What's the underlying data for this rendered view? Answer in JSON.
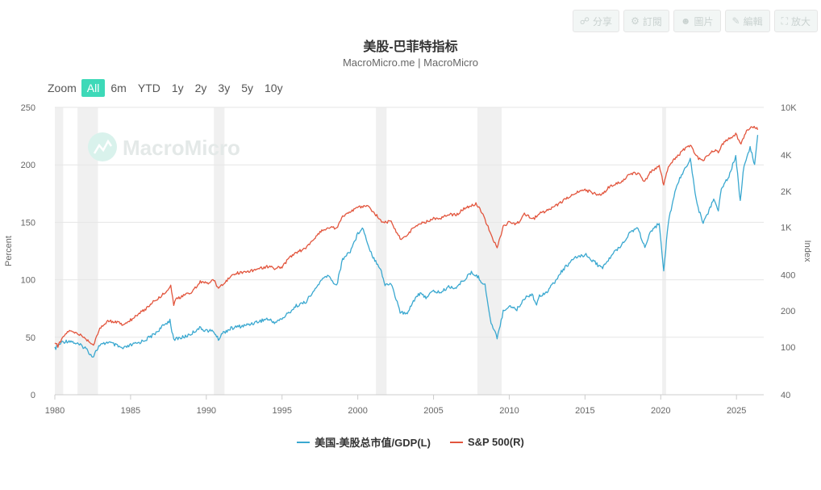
{
  "toolbar": {
    "buttons": [
      {
        "label": "分享",
        "icon": "share-icon"
      },
      {
        "label": "訂閱",
        "icon": "gear-icon"
      },
      {
        "label": "圖片",
        "icon": "user-icon"
      },
      {
        "label": "編輯",
        "icon": "pencil-icon"
      },
      {
        "label": "放大",
        "icon": "expand-icon"
      }
    ]
  },
  "zoom": {
    "label": "Zoom",
    "options": [
      "All",
      "6m",
      "YTD",
      "1y",
      "2y",
      "3y",
      "5y",
      "10y"
    ],
    "active": "All"
  },
  "watermark": "MacroMicro",
  "colors": {
    "blue": "#3aa8d0",
    "red": "#e2553d",
    "recession": "#f0f0f0",
    "accent": "#3dd9b8"
  },
  "chart_data": {
    "type": "line",
    "title": "美股-巴菲特指标",
    "subtitle": "MacroMicro.me | MacroMicro",
    "ylabel": "Percent",
    "y2label": "Index",
    "x_ticks": [
      "1980",
      "1985",
      "1990",
      "1995",
      "2000",
      "2005",
      "2010",
      "2015",
      "2020",
      "2025"
    ],
    "xlim": [
      1980,
      2026.8
    ],
    "ylim": [
      0,
      250
    ],
    "y_ticks": [
      "0",
      "50",
      "100",
      "150",
      "200",
      "250"
    ],
    "y2lim": [
      40,
      10000
    ],
    "y2_scale": "log",
    "y2_ticks": [
      {
        "v": 40,
        "label": "40"
      },
      {
        "v": 100,
        "label": "100"
      },
      {
        "v": 200,
        "label": "200"
      },
      {
        "v": 400,
        "label": "400"
      },
      {
        "v": 1000,
        "label": "1K"
      },
      {
        "v": 2000,
        "label": "2K"
      },
      {
        "v": 4000,
        "label": "4K"
      },
      {
        "v": 10000,
        "label": "10K"
      }
    ],
    "recessions": [
      [
        1980.0,
        1980.55
      ],
      [
        1981.5,
        1982.85
      ],
      [
        1990.5,
        1991.2
      ],
      [
        2001.2,
        2001.9
      ],
      [
        2007.9,
        2009.5
      ],
      [
        2020.1,
        2020.35
      ]
    ],
    "grid": true,
    "legend_position": "bottom",
    "series": [
      {
        "name": "美国-美股总市值/GDP(L)",
        "axis": "left",
        "color": "#3aa8d0",
        "points": [
          [
            1980.0,
            40
          ],
          [
            1980.5,
            46
          ],
          [
            1981.0,
            47
          ],
          [
            1981.5,
            44
          ],
          [
            1982.0,
            41
          ],
          [
            1982.5,
            33
          ],
          [
            1982.9,
            42
          ],
          [
            1983.5,
            46
          ],
          [
            1984.0,
            43
          ],
          [
            1984.5,
            40
          ],
          [
            1985.0,
            43
          ],
          [
            1985.5,
            45
          ],
          [
            1986.0,
            48
          ],
          [
            1986.5,
            52
          ],
          [
            1987.0,
            58
          ],
          [
            1987.6,
            65
          ],
          [
            1987.85,
            47
          ],
          [
            1988.0,
            49
          ],
          [
            1988.5,
            50
          ],
          [
            1989.0,
            53
          ],
          [
            1989.5,
            58
          ],
          [
            1990.0,
            56
          ],
          [
            1990.5,
            55
          ],
          [
            1990.8,
            48
          ],
          [
            1991.0,
            53
          ],
          [
            1991.5,
            57
          ],
          [
            1992.0,
            59
          ],
          [
            1992.5,
            60
          ],
          [
            1993.0,
            62
          ],
          [
            1993.5,
            64
          ],
          [
            1994.0,
            66
          ],
          [
            1994.5,
            63
          ],
          [
            1995.0,
            66
          ],
          [
            1995.5,
            72
          ],
          [
            1996.0,
            78
          ],
          [
            1996.5,
            80
          ],
          [
            1997.0,
            88
          ],
          [
            1997.5,
            98
          ],
          [
            1998.0,
            104
          ],
          [
            1998.6,
            95
          ],
          [
            1999.0,
            118
          ],
          [
            1999.5,
            125
          ],
          [
            2000.0,
            140
          ],
          [
            2000.3,
            146
          ],
          [
            2000.7,
            130
          ],
          [
            2001.0,
            120
          ],
          [
            2001.5,
            110
          ],
          [
            2001.8,
            95
          ],
          [
            2002.2,
            97
          ],
          [
            2002.8,
            72
          ],
          [
            2003.2,
            70
          ],
          [
            2003.6,
            80
          ],
          [
            2004.0,
            88
          ],
          [
            2004.5,
            85
          ],
          [
            2005.0,
            90
          ],
          [
            2005.5,
            89
          ],
          [
            2006.0,
            94
          ],
          [
            2006.5,
            93
          ],
          [
            2007.0,
            100
          ],
          [
            2007.5,
            106
          ],
          [
            2007.9,
            103
          ],
          [
            2008.4,
            95
          ],
          [
            2008.8,
            62
          ],
          [
            2009.2,
            50
          ],
          [
            2009.6,
            72
          ],
          [
            2010.0,
            78
          ],
          [
            2010.5,
            74
          ],
          [
            2011.0,
            84
          ],
          [
            2011.5,
            88
          ],
          [
            2011.8,
            78
          ],
          [
            2012.0,
            86
          ],
          [
            2012.5,
            90
          ],
          [
            2013.0,
            98
          ],
          [
            2013.5,
            108
          ],
          [
            2014.0,
            115
          ],
          [
            2014.5,
            120
          ],
          [
            2015.0,
            122
          ],
          [
            2015.6,
            116
          ],
          [
            2016.1,
            110
          ],
          [
            2016.6,
            118
          ],
          [
            2017.0,
            125
          ],
          [
            2017.5,
            132
          ],
          [
            2018.0,
            142
          ],
          [
            2018.5,
            145
          ],
          [
            2018.95,
            128
          ],
          [
            2019.3,
            140
          ],
          [
            2019.9,
            150
          ],
          [
            2020.2,
            108
          ],
          [
            2020.5,
            150
          ],
          [
            2021.0,
            180
          ],
          [
            2021.5,
            195
          ],
          [
            2021.95,
            205
          ],
          [
            2022.4,
            165
          ],
          [
            2022.8,
            150
          ],
          [
            2023.0,
            155
          ],
          [
            2023.5,
            170
          ],
          [
            2023.8,
            160
          ],
          [
            2024.0,
            180
          ],
          [
            2024.5,
            190
          ],
          [
            2024.95,
            208
          ],
          [
            2025.25,
            168
          ],
          [
            2025.5,
            200
          ],
          [
            2025.9,
            215
          ],
          [
            2026.2,
            200
          ],
          [
            2026.4,
            226
          ]
        ]
      },
      {
        "name": "S&P 500(R)",
        "axis": "right",
        "color": "#e2553d",
        "points": [
          [
            1980.0,
            108
          ],
          [
            1980.2,
            102
          ],
          [
            1980.5,
            118
          ],
          [
            1980.9,
            136
          ],
          [
            1981.5,
            130
          ],
          [
            1982.0,
            118
          ],
          [
            1982.55,
            104
          ],
          [
            1982.9,
            138
          ],
          [
            1983.5,
            165
          ],
          [
            1984.0,
            163
          ],
          [
            1984.5,
            154
          ],
          [
            1985.0,
            168
          ],
          [
            1985.5,
            189
          ],
          [
            1986.0,
            208
          ],
          [
            1986.5,
            240
          ],
          [
            1987.0,
            265
          ],
          [
            1987.65,
            322
          ],
          [
            1987.85,
            228
          ],
          [
            1988.0,
            248
          ],
          [
            1988.5,
            270
          ],
          [
            1989.0,
            285
          ],
          [
            1989.6,
            350
          ],
          [
            1990.0,
            340
          ],
          [
            1990.5,
            360
          ],
          [
            1990.8,
            310
          ],
          [
            1991.0,
            330
          ],
          [
            1991.5,
            375
          ],
          [
            1992.0,
            415
          ],
          [
            1992.5,
            420
          ],
          [
            1993.0,
            435
          ],
          [
            1993.5,
            450
          ],
          [
            1994.0,
            470
          ],
          [
            1994.5,
            455
          ],
          [
            1995.0,
            465
          ],
          [
            1995.5,
            560
          ],
          [
            1996.0,
            620
          ],
          [
            1996.5,
            660
          ],
          [
            1997.0,
            760
          ],
          [
            1997.5,
            920
          ],
          [
            1998.0,
            980
          ],
          [
            1998.6,
            990
          ],
          [
            1999.0,
            1230
          ],
          [
            1999.5,
            1350
          ],
          [
            2000.0,
            1450
          ],
          [
            2000.6,
            1520
          ],
          [
            2001.0,
            1340
          ],
          [
            2001.7,
            1090
          ],
          [
            2002.2,
            1120
          ],
          [
            2002.8,
            800
          ],
          [
            2003.2,
            840
          ],
          [
            2003.8,
            1030
          ],
          [
            2004.5,
            1110
          ],
          [
            2005.0,
            1180
          ],
          [
            2005.5,
            1200
          ],
          [
            2006.0,
            1280
          ],
          [
            2006.5,
            1270
          ],
          [
            2007.0,
            1420
          ],
          [
            2007.8,
            1560
          ],
          [
            2008.2,
            1340
          ],
          [
            2008.8,
            860
          ],
          [
            2009.2,
            680
          ],
          [
            2009.6,
            1000
          ],
          [
            2010.0,
            1120
          ],
          [
            2010.5,
            1060
          ],
          [
            2011.0,
            1280
          ],
          [
            2011.6,
            1170
          ],
          [
            2012.0,
            1300
          ],
          [
            2012.5,
            1380
          ],
          [
            2013.0,
            1480
          ],
          [
            2013.5,
            1640
          ],
          [
            2014.0,
            1800
          ],
          [
            2014.5,
            1950
          ],
          [
            2015.0,
            2050
          ],
          [
            2015.7,
            1900
          ],
          [
            2016.1,
            1860
          ],
          [
            2016.6,
            2170
          ],
          [
            2017.0,
            2280
          ],
          [
            2017.5,
            2450
          ],
          [
            2018.0,
            2800
          ],
          [
            2018.5,
            2820
          ],
          [
            2018.95,
            2400
          ],
          [
            2019.3,
            2900
          ],
          [
            2019.9,
            3230
          ],
          [
            2020.2,
            2250
          ],
          [
            2020.5,
            3200
          ],
          [
            2021.0,
            3800
          ],
          [
            2021.5,
            4400
          ],
          [
            2021.95,
            4780
          ],
          [
            2022.5,
            3700
          ],
          [
            2022.8,
            3600
          ],
          [
            2023.0,
            3900
          ],
          [
            2023.5,
            4400
          ],
          [
            2023.8,
            4200
          ],
          [
            2024.0,
            4800
          ],
          [
            2024.5,
            5500
          ],
          [
            2024.95,
            6000
          ],
          [
            2025.3,
            5000
          ],
          [
            2025.6,
            6200
          ],
          [
            2025.9,
            6700
          ],
          [
            2026.1,
            6900
          ],
          [
            2026.3,
            6800
          ],
          [
            2026.4,
            6500
          ]
        ]
      }
    ]
  }
}
